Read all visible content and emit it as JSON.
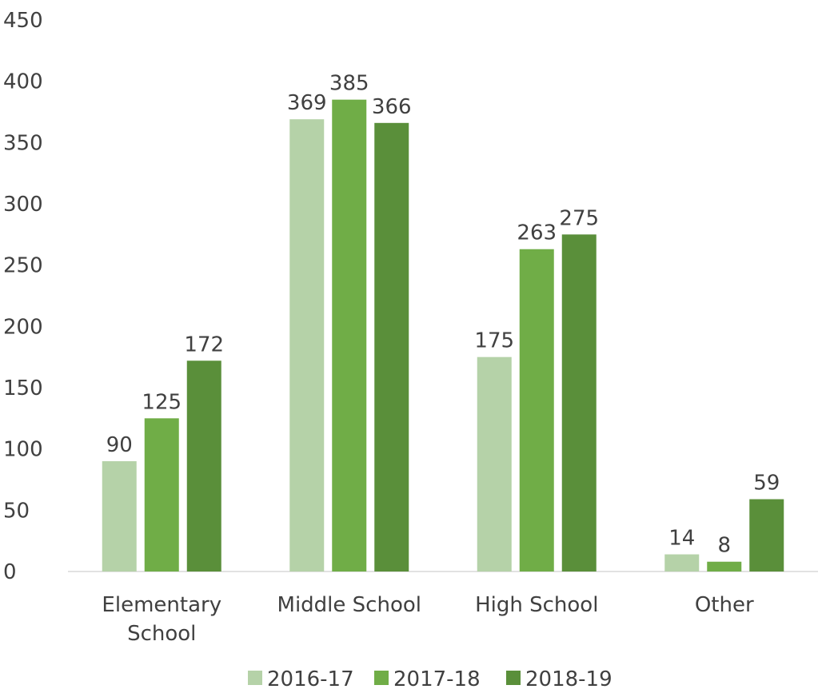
{
  "chart_data": {
    "type": "bar",
    "title": "",
    "xlabel": "",
    "ylabel": "",
    "ylim": [
      0,
      450
    ],
    "yticks": [
      0,
      50,
      100,
      150,
      200,
      250,
      300,
      350,
      400,
      450
    ],
    "grid": false,
    "legend_position": "bottom",
    "categories": [
      [
        "Elementary",
        "School"
      ],
      [
        "Middle School"
      ],
      [
        "High School"
      ],
      [
        "Other"
      ]
    ],
    "series": [
      {
        "name": "2016-17",
        "color": "#b5d2a8",
        "values": [
          90,
          369,
          175,
          14
        ]
      },
      {
        "name": "2017-18",
        "color": "#70ad47",
        "values": [
          125,
          385,
          263,
          8
        ]
      },
      {
        "name": "2018-19",
        "color": "#5a8f3a",
        "values": [
          172,
          366,
          275,
          59
        ]
      }
    ],
    "data_labels": true
  }
}
